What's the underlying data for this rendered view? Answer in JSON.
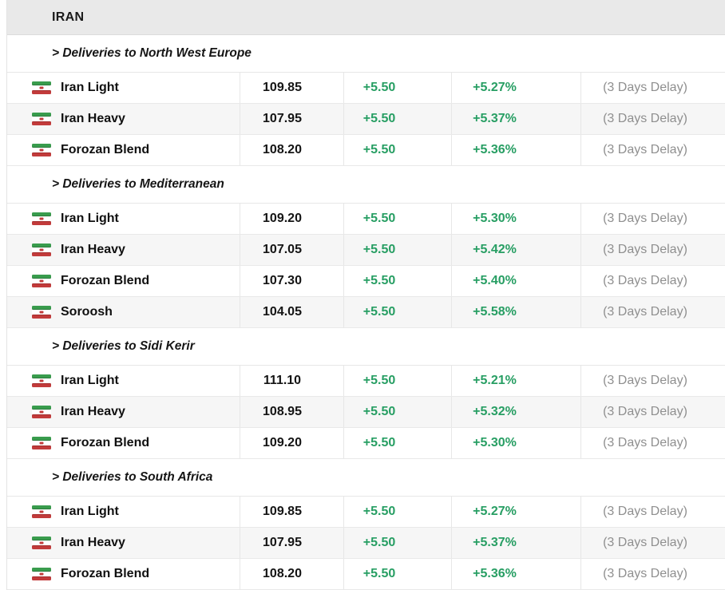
{
  "header": {
    "title": "IRAN"
  },
  "colors": {
    "header_bg": "#e9e9e9",
    "alt_row_bg": "#f6f6f6",
    "positive_green": "#279e63",
    "delay_gray": "#8f8f8f",
    "flag_green": "#399c4d",
    "flag_red": "#c23b3b"
  },
  "icons": {
    "flag": "iran-flag-icon"
  },
  "sections": [
    {
      "title": "> Deliveries to North West Europe",
      "rows": [
        {
          "name": "Iran Light",
          "price": "109.85",
          "change": "+5.50",
          "percent": "+5.27%",
          "delay": "(3 Days Delay)"
        },
        {
          "name": "Iran Heavy",
          "price": "107.95",
          "change": "+5.50",
          "percent": "+5.37%",
          "delay": "(3 Days Delay)"
        },
        {
          "name": "Forozan Blend",
          "price": "108.20",
          "change": "+5.50",
          "percent": "+5.36%",
          "delay": "(3 Days Delay)"
        }
      ]
    },
    {
      "title": "> Deliveries to Mediterranean",
      "rows": [
        {
          "name": "Iran Light",
          "price": "109.20",
          "change": "+5.50",
          "percent": "+5.30%",
          "delay": "(3 Days Delay)"
        },
        {
          "name": "Iran Heavy",
          "price": "107.05",
          "change": "+5.50",
          "percent": "+5.42%",
          "delay": "(3 Days Delay)"
        },
        {
          "name": "Forozan Blend",
          "price": "107.30",
          "change": "+5.50",
          "percent": "+5.40%",
          "delay": "(3 Days Delay)"
        },
        {
          "name": "Soroosh",
          "price": "104.05",
          "change": "+5.50",
          "percent": "+5.58%",
          "delay": "(3 Days Delay)"
        }
      ]
    },
    {
      "title": "> Deliveries to Sidi Kerir",
      "rows": [
        {
          "name": "Iran Light",
          "price": "111.10",
          "change": "+5.50",
          "percent": "+5.21%",
          "delay": "(3 Days Delay)"
        },
        {
          "name": "Iran Heavy",
          "price": "108.95",
          "change": "+5.50",
          "percent": "+5.32%",
          "delay": "(3 Days Delay)"
        },
        {
          "name": "Forozan Blend",
          "price": "109.20",
          "change": "+5.50",
          "percent": "+5.30%",
          "delay": "(3 Days Delay)"
        }
      ]
    },
    {
      "title": "> Deliveries to South Africa",
      "rows": [
        {
          "name": "Iran Light",
          "price": "109.85",
          "change": "+5.50",
          "percent": "+5.27%",
          "delay": "(3 Days Delay)"
        },
        {
          "name": "Iran Heavy",
          "price": "107.95",
          "change": "+5.50",
          "percent": "+5.37%",
          "delay": "(3 Days Delay)"
        },
        {
          "name": "Forozan Blend",
          "price": "108.20",
          "change": "+5.50",
          "percent": "+5.36%",
          "delay": "(3 Days Delay)"
        }
      ]
    }
  ]
}
